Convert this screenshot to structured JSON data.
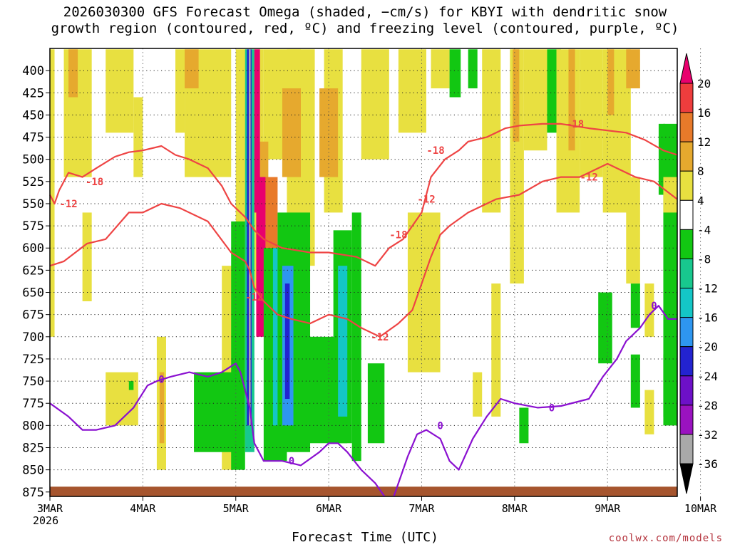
{
  "chart_data": {
    "type": "heatmap",
    "title_line1": "2026030300 GFS Forecast Omega (shaded, −cm/s) for KBYI with dendritic snow",
    "title_line2": "growth region (contoured, red, ºC) and freezing level (contoured, purple, ºC)",
    "xlabel": "Forecast Time (UTC)",
    "x_tick_labels": [
      "3MAR",
      "4MAR",
      "5MAR",
      "6MAR",
      "7MAR",
      "8MAR",
      "9MAR",
      "10MAR"
    ],
    "x_sub_label": "2026",
    "x_range_days": [
      0,
      6.75
    ],
    "y_ticks": [
      400,
      425,
      450,
      475,
      500,
      525,
      550,
      575,
      600,
      625,
      650,
      675,
      700,
      725,
      750,
      775,
      800,
      825,
      850,
      875
    ],
    "y_range_hpa": [
      375,
      880
    ],
    "colorbar": {
      "levels": [
        20,
        16,
        12,
        8,
        4,
        -4,
        -8,
        -12,
        -16,
        -20,
        -24,
        -28,
        -32,
        -36
      ],
      "colors": [
        "#e8006e",
        "#ee3d3d",
        "#e87a2a",
        "#e6a92e",
        "#e8e040",
        "#ffffff",
        "#12c712",
        "#18c88e",
        "#14c6c6",
        "#2e96f0",
        "#2323d0",
        "#6d10c8",
        "#9a12c0",
        "#a9a9a9",
        "#000000"
      ]
    },
    "omega_cells": [
      {
        "x0": 0.0,
        "x1": 0.05,
        "p0": 376,
        "p1": 700,
        "v": 6
      },
      {
        "x0": 0.15,
        "x1": 0.45,
        "p0": 376,
        "p1": 520,
        "v": 6
      },
      {
        "x0": 0.6,
        "x1": 0.9,
        "p0": 376,
        "p1": 470,
        "v": 6
      },
      {
        "x0": 0.2,
        "x1": 0.3,
        "p0": 376,
        "p1": 430,
        "v": 10
      },
      {
        "x0": 0.9,
        "x1": 1.0,
        "p0": 430,
        "p1": 520,
        "v": 6
      },
      {
        "x0": 1.15,
        "x1": 1.25,
        "p0": 700,
        "p1": 850,
        "v": 6
      },
      {
        "x0": 1.18,
        "x1": 1.23,
        "p0": 740,
        "p1": 820,
        "v": 10
      },
      {
        "x0": 0.35,
        "x1": 0.45,
        "p0": 560,
        "p1": 660,
        "v": 6
      },
      {
        "x0": 1.35,
        "x1": 1.45,
        "p0": 376,
        "p1": 470,
        "v": 6
      },
      {
        "x0": 1.45,
        "x1": 1.95,
        "p0": 376,
        "p1": 520,
        "v": 6
      },
      {
        "x0": 1.45,
        "x1": 1.6,
        "p0": 376,
        "p1": 420,
        "v": 10
      },
      {
        "x0": 1.85,
        "x1": 2.0,
        "p0": 620,
        "p1": 850,
        "v": 6
      },
      {
        "x0": 0.6,
        "x1": 0.95,
        "p0": 740,
        "p1": 800,
        "v": 6
      },
      {
        "x0": 0.85,
        "x1": 0.9,
        "p0": 750,
        "p1": 760,
        "v": -6
      },
      {
        "x0": 1.55,
        "x1": 2.0,
        "p0": 740,
        "p1": 830,
        "v": -6
      },
      {
        "x0": 2.0,
        "x1": 2.3,
        "p0": 376,
        "p1": 650,
        "v": 6
      },
      {
        "x0": 2.3,
        "x1": 2.7,
        "p0": 376,
        "p1": 500,
        "v": 6
      },
      {
        "x0": 2.55,
        "x1": 2.85,
        "p0": 376,
        "p1": 620,
        "v": 6
      },
      {
        "x0": 2.5,
        "x1": 2.7,
        "p0": 420,
        "p1": 520,
        "v": 10
      },
      {
        "x0": 2.95,
        "x1": 3.15,
        "p0": 376,
        "p1": 560,
        "v": 6
      },
      {
        "x0": 2.2,
        "x1": 2.35,
        "p0": 480,
        "p1": 560,
        "v": 10
      },
      {
        "x0": 2.9,
        "x1": 3.1,
        "p0": 420,
        "p1": 520,
        "v": 10
      },
      {
        "x0": 1.95,
        "x1": 2.1,
        "p0": 570,
        "p1": 850,
        "v": -6
      },
      {
        "x0": 2.1,
        "x1": 2.2,
        "p0": 376,
        "p1": 830,
        "v": -10
      },
      {
        "x0": 2.12,
        "x1": 2.17,
        "p0": 376,
        "p1": 800,
        "v": -20
      },
      {
        "x0": 2.14,
        "x1": 2.16,
        "p0": 376,
        "p1": 800,
        "v": -34
      },
      {
        "x0": 2.22,
        "x1": 2.32,
        "p0": 520,
        "p1": 700,
        "v": 22
      },
      {
        "x0": 2.2,
        "x1": 2.26,
        "p0": 376,
        "p1": 560,
        "v": 22
      },
      {
        "x0": 2.32,
        "x1": 2.45,
        "p0": 520,
        "p1": 660,
        "v": 14
      },
      {
        "x0": 2.3,
        "x1": 2.55,
        "p0": 600,
        "p1": 840,
        "v": -6
      },
      {
        "x0": 2.4,
        "x1": 2.5,
        "p0": 600,
        "p1": 800,
        "v": -14
      },
      {
        "x0": 2.45,
        "x1": 2.8,
        "p0": 560,
        "p1": 830,
        "v": -6
      },
      {
        "x0": 2.5,
        "x1": 2.62,
        "p0": 620,
        "p1": 800,
        "v": -18
      },
      {
        "x0": 2.53,
        "x1": 2.58,
        "p0": 640,
        "p1": 770,
        "v": -22
      },
      {
        "x0": 2.7,
        "x1": 3.2,
        "p0": 700,
        "p1": 820,
        "v": -6
      },
      {
        "x0": 3.05,
        "x1": 3.25,
        "p0": 580,
        "p1": 820,
        "v": -6
      },
      {
        "x0": 3.1,
        "x1": 3.2,
        "p0": 620,
        "p1": 790,
        "v": -14
      },
      {
        "x0": 3.25,
        "x1": 3.35,
        "p0": 560,
        "p1": 840,
        "v": -6
      },
      {
        "x0": 3.42,
        "x1": 3.6,
        "p0": 730,
        "p1": 820,
        "v": -6
      },
      {
        "x0": 3.35,
        "x1": 3.65,
        "p0": 376,
        "p1": 500,
        "v": 6
      },
      {
        "x0": 3.75,
        "x1": 4.05,
        "p0": 376,
        "p1": 470,
        "v": 6
      },
      {
        "x0": 3.85,
        "x1": 4.2,
        "p0": 560,
        "p1": 740,
        "v": 6
      },
      {
        "x0": 4.1,
        "x1": 4.3,
        "p0": 376,
        "p1": 420,
        "v": 6
      },
      {
        "x0": 4.3,
        "x1": 4.42,
        "p0": 376,
        "p1": 430,
        "v": -6
      },
      {
        "x0": 4.5,
        "x1": 4.6,
        "p0": 376,
        "p1": 420,
        "v": -6
      },
      {
        "x0": 4.55,
        "x1": 4.65,
        "p0": 740,
        "p1": 790,
        "v": 6
      },
      {
        "x0": 4.65,
        "x1": 4.85,
        "p0": 376,
        "p1": 560,
        "v": 6
      },
      {
        "x0": 4.95,
        "x1": 5.1,
        "p0": 376,
        "p1": 640,
        "v": 6
      },
      {
        "x0": 4.98,
        "x1": 5.05,
        "p0": 376,
        "p1": 480,
        "v": 10
      },
      {
        "x0": 5.1,
        "x1": 5.35,
        "p0": 376,
        "p1": 490,
        "v": 6
      },
      {
        "x0": 4.75,
        "x1": 4.85,
        "p0": 640,
        "p1": 790,
        "v": 6
      },
      {
        "x0": 5.05,
        "x1": 5.15,
        "p0": 780,
        "p1": 820,
        "v": -6
      },
      {
        "x0": 5.35,
        "x1": 5.5,
        "p0": 376,
        "p1": 470,
        "v": -6
      },
      {
        "x0": 5.45,
        "x1": 5.7,
        "p0": 376,
        "p1": 560,
        "v": 6
      },
      {
        "x0": 5.58,
        "x1": 5.65,
        "p0": 376,
        "p1": 490,
        "v": 10
      },
      {
        "x0": 5.7,
        "x1": 5.95,
        "p0": 376,
        "p1": 520,
        "v": 6
      },
      {
        "x0": 5.95,
        "x1": 6.25,
        "p0": 376,
        "p1": 560,
        "v": 6
      },
      {
        "x0": 6.0,
        "x1": 6.07,
        "p0": 376,
        "p1": 450,
        "v": 10
      },
      {
        "x0": 6.2,
        "x1": 6.35,
        "p0": 376,
        "p1": 420,
        "v": 10
      },
      {
        "x0": 5.9,
        "x1": 6.05,
        "p0": 650,
        "p1": 730,
        "v": -6
      },
      {
        "x0": 6.25,
        "x1": 6.35,
        "p0": 640,
        "p1": 690,
        "v": -6
      },
      {
        "x0": 6.25,
        "x1": 6.35,
        "p0": 720,
        "p1": 780,
        "v": -6
      },
      {
        "x0": 6.4,
        "x1": 6.5,
        "p0": 640,
        "p1": 700,
        "v": 6
      },
      {
        "x0": 6.55,
        "x1": 6.62,
        "p0": 460,
        "p1": 540,
        "v": -6
      },
      {
        "x0": 6.6,
        "x1": 6.75,
        "p0": 460,
        "p1": 800,
        "v": -6
      },
      {
        "x0": 6.4,
        "x1": 6.5,
        "p0": 760,
        "p1": 810,
        "v": 6
      },
      {
        "x0": 6.6,
        "x1": 6.7,
        "p0": 720,
        "p1": 790,
        "v": -6
      },
      {
        "x0": 6.2,
        "x1": 6.35,
        "p0": 520,
        "p1": 640,
        "v": 6
      },
      {
        "x0": 6.6,
        "x1": 6.75,
        "p0": 520,
        "p1": 560,
        "v": 6
      }
    ],
    "contours": [
      {
        "name": "dgz -18",
        "color": "#ee4444",
        "label": "-18",
        "points": [
          [
            0,
            540
          ],
          [
            0.05,
            550
          ],
          [
            0.1,
            535
          ],
          [
            0.2,
            515
          ],
          [
            0.35,
            520
          ],
          [
            0.5,
            510
          ],
          [
            0.7,
            497
          ],
          [
            0.85,
            492
          ],
          [
            1.0,
            490
          ],
          [
            1.2,
            485
          ],
          [
            1.35,
            495
          ],
          [
            1.5,
            500
          ],
          [
            1.7,
            510
          ],
          [
            1.85,
            530
          ],
          [
            1.95,
            550
          ],
          [
            2.1,
            565
          ],
          [
            2.2,
            580
          ],
          [
            2.3,
            590
          ],
          [
            2.5,
            600
          ],
          [
            2.8,
            605
          ],
          [
            3.0,
            605
          ],
          [
            3.3,
            610
          ],
          [
            3.5,
            620
          ],
          [
            3.65,
            600
          ],
          [
            3.8,
            590
          ],
          [
            4.0,
            560
          ],
          [
            4.1,
            520
          ],
          [
            4.25,
            500
          ],
          [
            4.4,
            490
          ],
          [
            4.5,
            480
          ],
          [
            4.7,
            475
          ],
          [
            4.9,
            465
          ],
          [
            5.05,
            462
          ],
          [
            5.3,
            460
          ],
          [
            5.5,
            460
          ],
          [
            5.8,
            465
          ],
          [
            6.2,
            470
          ],
          [
            6.4,
            478
          ],
          [
            6.6,
            490
          ],
          [
            6.75,
            495
          ]
        ],
        "label_points": [
          [
            0.48,
            525
          ],
          [
            4.15,
            490
          ],
          [
            5.65,
            460
          ],
          [
            3.75,
            585
          ]
        ]
      },
      {
        "name": "dgz -12",
        "color": "#ee4444",
        "label": "-12",
        "points": [
          [
            0,
            620
          ],
          [
            0.15,
            615
          ],
          [
            0.4,
            595
          ],
          [
            0.6,
            590
          ],
          [
            0.85,
            560
          ],
          [
            1.0,
            560
          ],
          [
            1.2,
            550
          ],
          [
            1.4,
            555
          ],
          [
            1.7,
            570
          ],
          [
            1.95,
            605
          ],
          [
            2.1,
            615
          ],
          [
            2.15,
            625
          ],
          [
            2.2,
            645
          ],
          [
            2.3,
            660
          ],
          [
            2.45,
            675
          ],
          [
            2.6,
            680
          ],
          [
            2.8,
            685
          ],
          [
            3.0,
            675
          ],
          [
            3.2,
            680
          ],
          [
            3.35,
            690
          ],
          [
            3.55,
            700
          ],
          [
            3.75,
            685
          ],
          [
            3.9,
            670
          ],
          [
            4.0,
            640
          ],
          [
            4.1,
            610
          ],
          [
            4.2,
            585
          ],
          [
            4.3,
            575
          ],
          [
            4.5,
            560
          ],
          [
            4.8,
            545
          ],
          [
            5.05,
            540
          ],
          [
            5.3,
            525
          ],
          [
            5.5,
            520
          ],
          [
            5.7,
            520
          ],
          [
            6.0,
            505
          ],
          [
            6.3,
            520
          ],
          [
            6.5,
            525
          ],
          [
            6.75,
            545
          ]
        ],
        "label_points": [
          [
            0.2,
            550
          ],
          [
            2.2,
            655
          ],
          [
            3.55,
            700
          ],
          [
            4.05,
            545
          ],
          [
            5.8,
            520
          ]
        ]
      },
      {
        "name": "freezing level 0",
        "color": "#8a10d0",
        "label": "0",
        "points": [
          [
            0,
            775
          ],
          [
            0.2,
            790
          ],
          [
            0.35,
            805
          ],
          [
            0.5,
            805
          ],
          [
            0.7,
            800
          ],
          [
            0.9,
            780
          ],
          [
            1.05,
            755
          ],
          [
            1.15,
            750
          ],
          [
            1.3,
            745
          ],
          [
            1.5,
            740
          ],
          [
            1.7,
            745
          ],
          [
            1.85,
            740
          ],
          [
            2.0,
            730
          ],
          [
            2.05,
            740
          ],
          [
            2.15,
            780
          ],
          [
            2.2,
            820
          ],
          [
            2.3,
            840
          ],
          [
            2.5,
            840
          ],
          [
            2.7,
            845
          ],
          [
            2.9,
            830
          ],
          [
            3.0,
            820
          ],
          [
            3.1,
            820
          ],
          [
            3.2,
            830
          ],
          [
            3.35,
            850
          ],
          [
            3.5,
            865
          ],
          [
            3.6,
            880
          ]
        ],
        "label_points": [
          [
            1.2,
            748
          ],
          [
            2.6,
            840
          ]
        ]
      },
      {
        "name": "freezing level 0 (b)",
        "color": "#8a10d0",
        "label": "0",
        "points": [
          [
            3.7,
            880
          ],
          [
            3.85,
            835
          ],
          [
            3.95,
            810
          ],
          [
            4.05,
            805
          ],
          [
            4.2,
            815
          ],
          [
            4.3,
            840
          ],
          [
            4.4,
            850
          ],
          [
            4.55,
            815
          ],
          [
            4.7,
            790
          ],
          [
            4.85,
            770
          ],
          [
            5.0,
            775
          ],
          [
            5.25,
            780
          ],
          [
            5.5,
            778
          ],
          [
            5.8,
            770
          ],
          [
            5.95,
            745
          ],
          [
            6.1,
            725
          ],
          [
            6.2,
            705
          ],
          [
            6.3,
            695
          ],
          [
            6.35,
            690
          ],
          [
            6.45,
            675
          ],
          [
            6.55,
            665
          ],
          [
            6.65,
            680
          ],
          [
            6.75,
            680
          ]
        ],
        "label_points": [
          [
            4.2,
            800
          ],
          [
            5.4,
            780
          ],
          [
            6.5,
            665
          ]
        ]
      }
    ],
    "terrain_color": "#a6552e",
    "credit": "coolwx.com/models"
  }
}
